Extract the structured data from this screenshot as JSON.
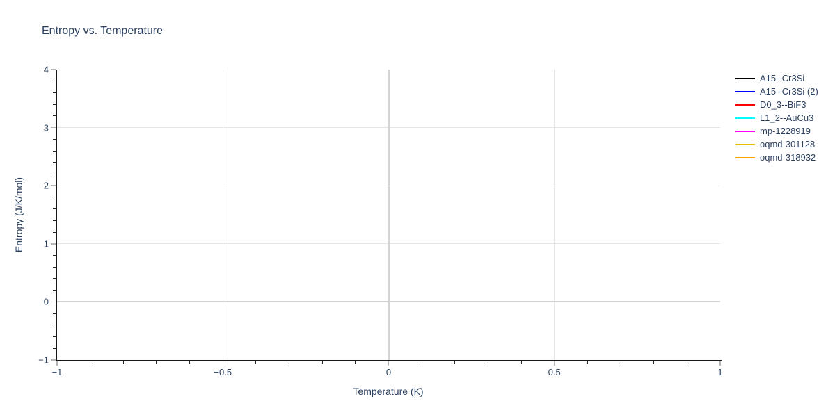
{
  "page": {
    "title": "Entropy vs. Temperature"
  },
  "colors": {
    "background": "#ffffff",
    "text": "#2a3f5f",
    "axis_line": "#161616",
    "gridline": "#e5e5e5",
    "zeroline": "#d4d4d4",
    "major_tick": "#b5b5b5",
    "minor_tick": "#2a2a2a"
  },
  "chart_data": {
    "type": "line",
    "title": "Entropy vs. Temperature",
    "xlabel": "Temperature (K)",
    "ylabel": "Entropy (J/K/mol)",
    "xlim": [
      -1,
      1
    ],
    "ylim": [
      -1,
      4
    ],
    "grid": true,
    "legend_position": "top-right",
    "x_ticks": {
      "values": [
        -1,
        -0.5,
        0,
        0.5,
        1
      ],
      "labels": [
        "−1",
        "−0.5",
        "0",
        "0.5",
        "1"
      ],
      "minor_step": 0.1
    },
    "y_ticks": {
      "values": [
        -1,
        0,
        1,
        2,
        3,
        4
      ],
      "labels": [
        "−1",
        "0",
        "1",
        "2",
        "3",
        "4"
      ],
      "minor_step": 0.2
    },
    "gridlines": {
      "x_values": [
        -0.5,
        0.5
      ],
      "y_values": [
        1,
        2,
        3
      ],
      "x_zeroline": 0,
      "y_zeroline": 0
    },
    "series": [
      {
        "name": "A15--Cr3Si",
        "color": "#000000",
        "x": [],
        "y": []
      },
      {
        "name": "A15--Cr3Si (2)",
        "color": "#0000ff",
        "x": [],
        "y": []
      },
      {
        "name": "D0_3--BiF3",
        "color": "#ff0000",
        "x": [],
        "y": []
      },
      {
        "name": "L1_2--AuCu3",
        "color": "#00ffff",
        "x": [],
        "y": []
      },
      {
        "name": "mp-1228919",
        "color": "#ff00ff",
        "x": [],
        "y": []
      },
      {
        "name": "oqmd-301128",
        "color": "#e4c000",
        "x": [],
        "y": []
      },
      {
        "name": "oqmd-318932",
        "color": "#ffa500",
        "x": [],
        "y": []
      }
    ]
  }
}
